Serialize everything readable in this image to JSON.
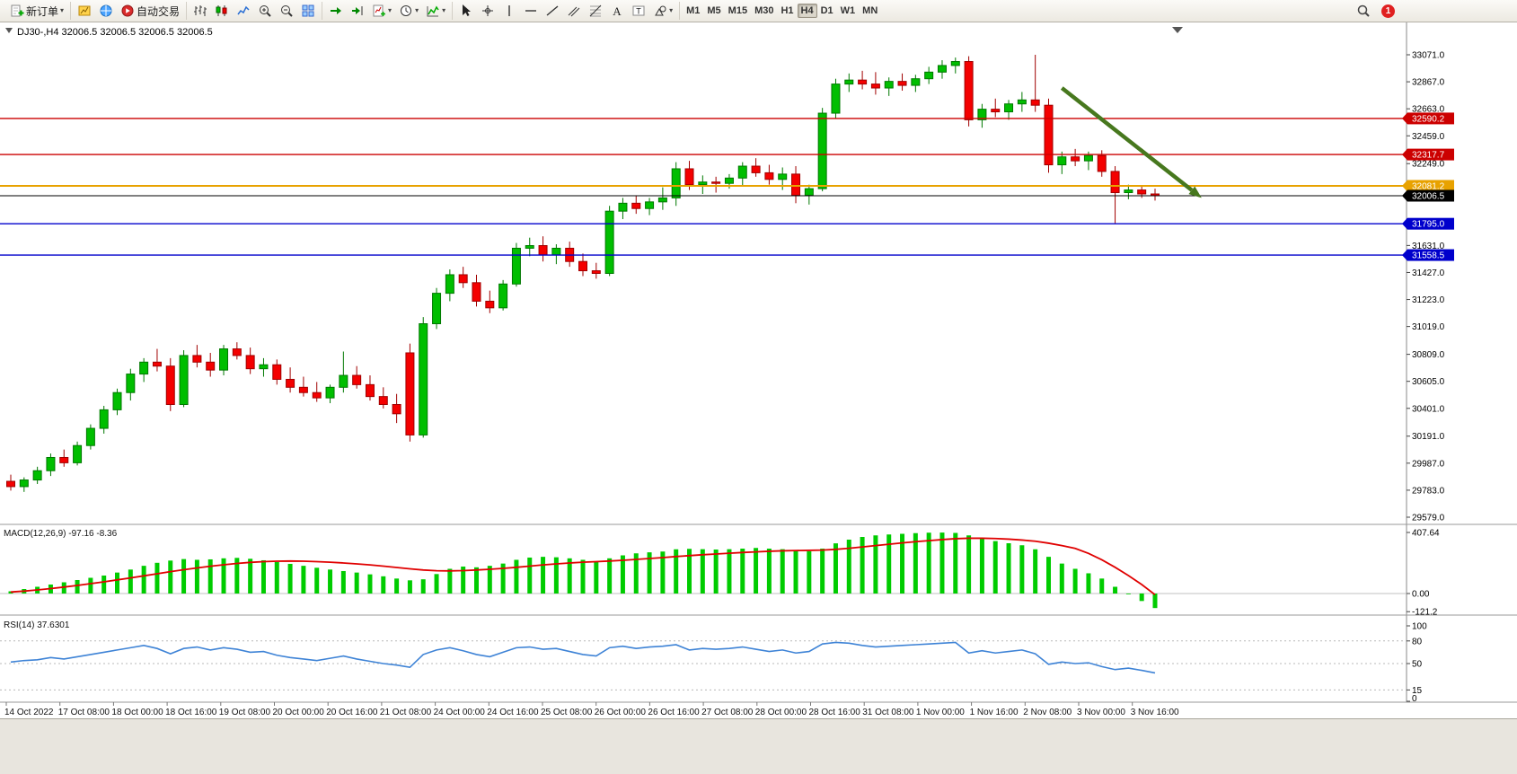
{
  "toolbar": {
    "notification_count": "1",
    "groups": [
      {
        "items": [
          {
            "name": "new-order-button",
            "icon": "new-order-icon",
            "label": "新订单",
            "caret": true
          }
        ]
      },
      {
        "items": [
          {
            "name": "charts-button",
            "icon": "charts-icon"
          },
          {
            "name": "profile-button",
            "icon": "profile-icon"
          },
          {
            "name": "auto-trading-button",
            "icon": "autotrade-icon",
            "label": "自动交易"
          }
        ]
      },
      {
        "items": [
          {
            "name": "bar-chart-button",
            "icon": "bars-icon"
          },
          {
            "name": "candlestick-button",
            "icon": "candles-icon"
          },
          {
            "name": "line-chart-button",
            "icon": "line-icon"
          },
          {
            "name": "zoom-in-button",
            "icon": "zoom-in-icon"
          },
          {
            "name": "zoom-out-button",
            "icon": "zoom-out-icon"
          },
          {
            "name": "tile-windows-button",
            "icon": "tile-icon"
          }
        ]
      },
      {
        "items": [
          {
            "name": "auto-scroll-button",
            "icon": "auto-scroll-icon"
          },
          {
            "name": "chart-shift-button",
            "icon": "chart-shift-icon"
          },
          {
            "name": "new-chart-button",
            "icon": "new-chart-icon",
            "caret": true
          },
          {
            "name": "period-selector-button",
            "icon": "clock-icon",
            "caret": true
          },
          {
            "name": "indicators-button",
            "icon": "indicator-icon",
            "caret": true
          }
        ]
      },
      {
        "items": [
          {
            "name": "cursor-button",
            "icon": "cursor-icon"
          },
          {
            "name": "crosshair-button",
            "icon": "crosshair-icon"
          },
          {
            "name": "vertical-line-button",
            "icon": "vline-icon"
          },
          {
            "name": "horizontal-line-button",
            "icon": "hline-icon"
          },
          {
            "name": "trendline-button",
            "icon": "trendline-icon"
          },
          {
            "name": "channel-button",
            "icon": "channel-icon"
          },
          {
            "name": "fibonacci-button",
            "icon": "fibo-icon"
          },
          {
            "name": "text-button",
            "icon": "text-icon"
          },
          {
            "name": "label-button",
            "icon": "label-icon"
          },
          {
            "name": "arrows-button",
            "icon": "shapes-icon",
            "caret": true
          }
        ]
      },
      {
        "items": [
          {
            "name": "tf-m1-button",
            "label": "M1"
          },
          {
            "name": "tf-m5-button",
            "label": "M5"
          },
          {
            "name": "tf-m15-button",
            "label": "M15"
          },
          {
            "name": "tf-m30-button",
            "label": "M30"
          },
          {
            "name": "tf-h1-button",
            "label": "H1"
          },
          {
            "name": "tf-h4-button",
            "label": "H4",
            "active": true
          },
          {
            "name": "tf-d1-button",
            "label": "D1"
          },
          {
            "name": "tf-w1-button",
            "label": "W1"
          },
          {
            "name": "tf-mn-button",
            "label": "MN"
          }
        ]
      }
    ]
  },
  "chart": {
    "title": "DJ30-,H4 32006.5 32006.5 32006.5 32006.5",
    "symbol": "DJ30-",
    "period": "H4",
    "price_axis_ticks": [
      33071.0,
      32867.0,
      32663.0,
      32459.0,
      32249.0,
      31631.0,
      31427.0,
      31223.0,
      31019.0,
      30809.0,
      30605.0,
      30401.0,
      30191.0,
      29987.0,
      29783.0,
      29579.0
    ],
    "price_lines": [
      {
        "label": "32590.2",
        "price": 32590.2,
        "color": "#cc0000",
        "width": 1.4
      },
      {
        "label": "32317.7",
        "price": 32317.7,
        "color": "#cc0000",
        "width": 1.4
      },
      {
        "label": "32081.2",
        "price": 32081.2,
        "color": "#e8a200",
        "width": 2
      },
      {
        "label": "32006.5",
        "price": 32006.5,
        "color": "#000000",
        "width": 1,
        "current": true
      },
      {
        "label": "31795.0",
        "price": 31795.0,
        "color": "#0000cc",
        "width": 1.4
      },
      {
        "label": "31558.5",
        "price": 31558.5,
        "color": "#0000cc",
        "width": 1.4
      }
    ],
    "time_axis": [
      "14 Oct 2022",
      "17 Oct 08:00",
      "18 Oct 00:00",
      "18 Oct 16:00",
      "19 Oct 08:00",
      "20 Oct 00:00",
      "20 Oct 16:00",
      "21 Oct 08:00",
      "24 Oct 00:00",
      "24 Oct 16:00",
      "25 Oct 08:00",
      "26 Oct 00:00",
      "26 Oct 16:00",
      "27 Oct 08:00",
      "28 Oct 00:00",
      "28 Oct 16:00",
      "31 Oct 08:00",
      "1 Nov 00:00",
      "1 Nov 16:00",
      "2 Nov 08:00",
      "3 Nov 00:00",
      "3 Nov 16:00"
    ]
  },
  "macd": {
    "label": "MACD(12,26,9) -97.16 -8.36",
    "axis_max": "407.64",
    "axis_zero": "0.00",
    "axis_min": "-121.2"
  },
  "rsi": {
    "label": "RSI(14) 37.6301",
    "axis": [
      100,
      80,
      50,
      15,
      0
    ]
  },
  "colors": {
    "up": "#00be00",
    "up_stroke": "#007800",
    "down": "#f40000",
    "down_stroke": "#a00000",
    "macd_hist": "#00cc00",
    "macd_signal": "#e00000",
    "rsi_line": "#3e83d6"
  },
  "chart_data": {
    "type": "candlestick",
    "symbol": "DJ30-",
    "timeframe": "H4",
    "ohlc": [
      [
        29850,
        29900,
        29780,
        29810
      ],
      [
        29810,
        29880,
        29770,
        29860
      ],
      [
        29860,
        29960,
        29830,
        29930
      ],
      [
        29930,
        30060,
        29890,
        30030
      ],
      [
        30030,
        30090,
        29960,
        29990
      ],
      [
        29990,
        30150,
        29970,
        30120
      ],
      [
        30120,
        30280,
        30090,
        30250
      ],
      [
        30250,
        30420,
        30210,
        30390
      ],
      [
        30390,
        30550,
        30350,
        30520
      ],
      [
        30520,
        30700,
        30460,
        30660
      ],
      [
        30660,
        30780,
        30600,
        30750
      ],
      [
        30750,
        30850,
        30680,
        30720
      ],
      [
        30720,
        30780,
        30380,
        30430
      ],
      [
        30430,
        30840,
        30410,
        30800
      ],
      [
        30800,
        30880,
        30710,
        30750
      ],
      [
        30750,
        30820,
        30640,
        30690
      ],
      [
        30690,
        30880,
        30650,
        30850
      ],
      [
        30850,
        30900,
        30770,
        30800
      ],
      [
        30800,
        30860,
        30660,
        30700
      ],
      [
        30700,
        30780,
        30640,
        30730
      ],
      [
        30730,
        30770,
        30580,
        30620
      ],
      [
        30620,
        30710,
        30520,
        30560
      ],
      [
        30560,
        30640,
        30490,
        30520
      ],
      [
        30520,
        30600,
        30450,
        30480
      ],
      [
        30480,
        30580,
        30440,
        30560
      ],
      [
        30560,
        30830,
        30520,
        30650
      ],
      [
        30650,
        30720,
        30550,
        30580
      ],
      [
        30580,
        30650,
        30460,
        30490
      ],
      [
        30490,
        30560,
        30400,
        30430
      ],
      [
        30430,
        30510,
        30290,
        30360
      ],
      [
        30820,
        30890,
        30150,
        30200
      ],
      [
        30200,
        31090,
        30180,
        31040
      ],
      [
        31040,
        31310,
        31000,
        31270
      ],
      [
        31270,
        31450,
        31210,
        31410
      ],
      [
        31410,
        31470,
        31310,
        31350
      ],
      [
        31350,
        31410,
        31170,
        31210
      ],
      [
        31210,
        31290,
        31120,
        31160
      ],
      [
        31160,
        31370,
        31140,
        31340
      ],
      [
        31340,
        31650,
        31320,
        31610
      ],
      [
        31610,
        31690,
        31550,
        31630
      ],
      [
        31630,
        31700,
        31510,
        31560
      ],
      [
        31560,
        31640,
        31490,
        31610
      ],
      [
        31610,
        31660,
        31470,
        31510
      ],
      [
        31510,
        31570,
        31400,
        31440
      ],
      [
        31440,
        31500,
        31380,
        31420
      ],
      [
        31420,
        31930,
        31400,
        31890
      ],
      [
        31890,
        31990,
        31830,
        31950
      ],
      [
        31950,
        32010,
        31870,
        31910
      ],
      [
        31910,
        31990,
        31860,
        31960
      ],
      [
        31960,
        32070,
        31900,
        31990
      ],
      [
        31990,
        32260,
        31930,
        32210
      ],
      [
        32210,
        32270,
        32050,
        32090
      ],
      [
        32090,
        32160,
        32020,
        32110
      ],
      [
        32110,
        32150,
        32030,
        32100
      ],
      [
        32100,
        32170,
        32060,
        32140
      ],
      [
        32140,
        32260,
        32080,
        32230
      ],
      [
        32230,
        32290,
        32150,
        32180
      ],
      [
        32180,
        32240,
        32090,
        32130
      ],
      [
        32130,
        32220,
        32050,
        32170
      ],
      [
        32170,
        32230,
        31950,
        32010
      ],
      [
        32010,
        32090,
        31940,
        32060
      ],
      [
        32060,
        32670,
        32040,
        32630
      ],
      [
        32630,
        32890,
        32590,
        32850
      ],
      [
        32850,
        32930,
        32790,
        32880
      ],
      [
        32880,
        32950,
        32810,
        32850
      ],
      [
        32850,
        32940,
        32770,
        32820
      ],
      [
        32820,
        32900,
        32760,
        32870
      ],
      [
        32870,
        32930,
        32800,
        32840
      ],
      [
        32840,
        32920,
        32790,
        32890
      ],
      [
        32890,
        32980,
        32850,
        32940
      ],
      [
        32940,
        33030,
        32890,
        32990
      ],
      [
        32990,
        33050,
        32930,
        33020
      ],
      [
        33020,
        33060,
        32530,
        32580
      ],
      [
        32580,
        32700,
        32520,
        32660
      ],
      [
        32660,
        32740,
        32600,
        32640
      ],
      [
        32640,
        32730,
        32580,
        32700
      ],
      [
        32700,
        32790,
        32640,
        32730
      ],
      [
        32730,
        33071,
        32640,
        32690
      ],
      [
        32690,
        32740,
        32180,
        32240
      ],
      [
        32240,
        32340,
        32170,
        32300
      ],
      [
        32300,
        32360,
        32230,
        32270
      ],
      [
        32270,
        32340,
        32200,
        32310
      ],
      [
        32310,
        32350,
        32150,
        32190
      ],
      [
        32190,
        32230,
        31800,
        32030
      ],
      [
        32030,
        32090,
        31980,
        32050
      ],
      [
        32050,
        32080,
        31990,
        32020
      ],
      [
        32020,
        32060,
        31970,
        32006.5
      ]
    ],
    "indicators": {
      "macd": {
        "params": "12,26,9",
        "last_main": -97.16,
        "last_signal": -8.36,
        "scale_max": 407.64,
        "scale_min": -121.2,
        "histogram": [
          15,
          30,
          45,
          60,
          75,
          90,
          105,
          120,
          140,
          160,
          185,
          205,
          220,
          230,
          225,
          228,
          235,
          238,
          232,
          222,
          210,
          198,
          185,
          172,
          160,
          150,
          140,
          128,
          115,
          100,
          88,
          95,
          130,
          165,
          180,
          175,
          185,
          200,
          225,
          240,
          245,
          242,
          235,
          225,
          215,
          235,
          255,
          268,
          275,
          280,
          295,
          298,
          296,
          294,
          296,
          300,
          304,
          300,
          296,
          288,
          282,
          300,
          335,
          360,
          378,
          388,
          394,
          399,
          403,
          406,
          407,
          405,
          388,
          368,
          350,
          336,
          322,
          295,
          245,
          200,
          165,
          135,
          100,
          45,
          -5,
          -50,
          -97
        ],
        "signal": [
          10,
          16,
          24,
          33,
          43,
          54,
          66,
          78,
          91,
          104,
          118,
          132,
          146,
          159,
          171,
          182,
          192,
          201,
          208,
          213,
          216,
          217,
          216,
          213,
          209,
          204,
          198,
          191,
          183,
          174,
          165,
          157,
          152,
          151,
          153,
          157,
          162,
          168,
          175,
          183,
          191,
          198,
          204,
          209,
          213,
          217,
          222,
          228,
          234,
          240,
          247,
          253,
          259,
          264,
          269,
          274,
          278,
          282,
          285,
          287,
          288,
          290,
          295,
          302,
          311,
          320,
          329,
          338,
          346,
          353,
          360,
          366,
          369,
          369,
          367,
          363,
          357,
          349,
          336,
          320,
          301,
          268,
          225,
          175,
          120,
          60,
          -8
        ]
      },
      "rsi": {
        "period": 14,
        "last": 37.6301,
        "values": [
          52,
          54,
          55,
          58,
          56,
          59,
          62,
          65,
          68,
          71,
          74,
          70,
          63,
          70,
          72,
          68,
          71,
          69,
          65,
          66,
          61,
          58,
          56,
          54,
          57,
          60,
          56,
          53,
          50,
          48,
          45,
          62,
          68,
          71,
          67,
          62,
          59,
          65,
          71,
          72,
          69,
          70,
          66,
          62,
          60,
          71,
          73,
          70,
          72,
          73,
          75,
          68,
          70,
          69,
          70,
          72,
          69,
          66,
          68,
          64,
          66,
          76,
          78,
          77,
          74,
          72,
          73,
          74,
          75,
          76,
          77,
          78,
          64,
          67,
          64,
          66,
          68,
          63,
          49,
          52,
          50,
          51,
          46,
          42,
          44,
          41,
          37.6
        ]
      }
    },
    "trend_arrow": {
      "from_bar": 79,
      "from_price": 32820,
      "to_bar": 89.5,
      "to_price": 31990,
      "color": "#47781e"
    }
  }
}
